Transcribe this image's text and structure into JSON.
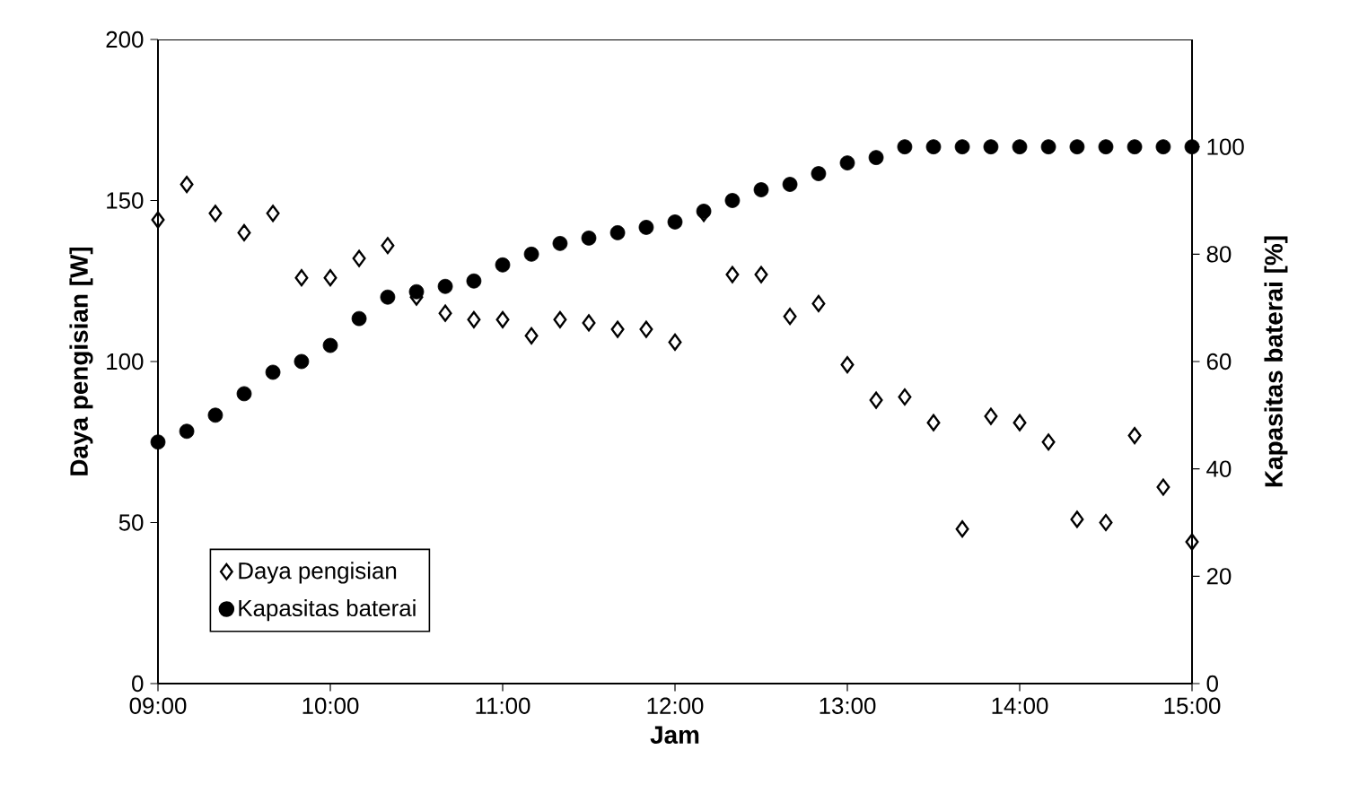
{
  "chart_data": {
    "type": "scatter",
    "xlabel": "Jam",
    "ylabel": "Daya pengisian [W]",
    "y2label": "Kapasitas baterai [%]",
    "x": [
      9,
      9.167,
      9.333,
      9.5,
      9.667,
      9.833,
      10,
      10.167,
      10.333,
      10.5,
      10.667,
      10.833,
      11,
      11.167,
      11.333,
      11.5,
      11.667,
      11.833,
      12,
      12.167,
      12.333,
      12.5,
      12.667,
      12.833,
      13,
      13.167,
      13.333,
      13.5,
      13.667,
      13.833,
      14,
      14.167,
      14.333,
      14.5,
      14.667,
      14.833,
      15
    ],
    "series": [
      {
        "name": "Daya pengisian",
        "color": "#000000",
        "marker": "diamond",
        "values": [
          144,
          155,
          146,
          140,
          146,
          126,
          126,
          132,
          136,
          120,
          115,
          113,
          113,
          108,
          113,
          112,
          110,
          110,
          106,
          146,
          127,
          127,
          114,
          118,
          99,
          88,
          89,
          81,
          48,
          83,
          81,
          75,
          51,
          50,
          77,
          61,
          44
        ]
      },
      {
        "name": "Kapasitas baterai",
        "color": "#000000",
        "marker": "circle",
        "axis": "y2",
        "values": [
          45,
          47,
          50,
          54,
          58,
          60,
          63,
          68,
          72,
          73,
          74,
          75,
          78,
          80,
          82,
          83,
          84,
          85,
          86,
          88,
          90,
          92,
          93,
          95,
          97,
          98,
          100,
          100,
          100,
          100,
          100,
          100,
          100,
          100,
          100,
          100,
          100
        ]
      }
    ],
    "xlim": [
      9,
      15
    ],
    "xticks": [
      {
        "value": 9,
        "label": "09:00"
      },
      {
        "value": 10,
        "label": "10:00"
      },
      {
        "value": 11,
        "label": "11:00"
      },
      {
        "value": 12,
        "label": "12:00"
      },
      {
        "value": 13,
        "label": "13:00"
      },
      {
        "value": 14,
        "label": "14:00"
      },
      {
        "value": 15,
        "label": "15:00"
      }
    ],
    "ylim": [
      0,
      200
    ],
    "yticks": [
      0,
      50,
      100,
      150,
      200
    ],
    "y2lim": [
      0,
      120
    ],
    "y2ticks": [
      0,
      20,
      40,
      60,
      80,
      100
    ],
    "grid": false,
    "legend": "bottom left"
  }
}
